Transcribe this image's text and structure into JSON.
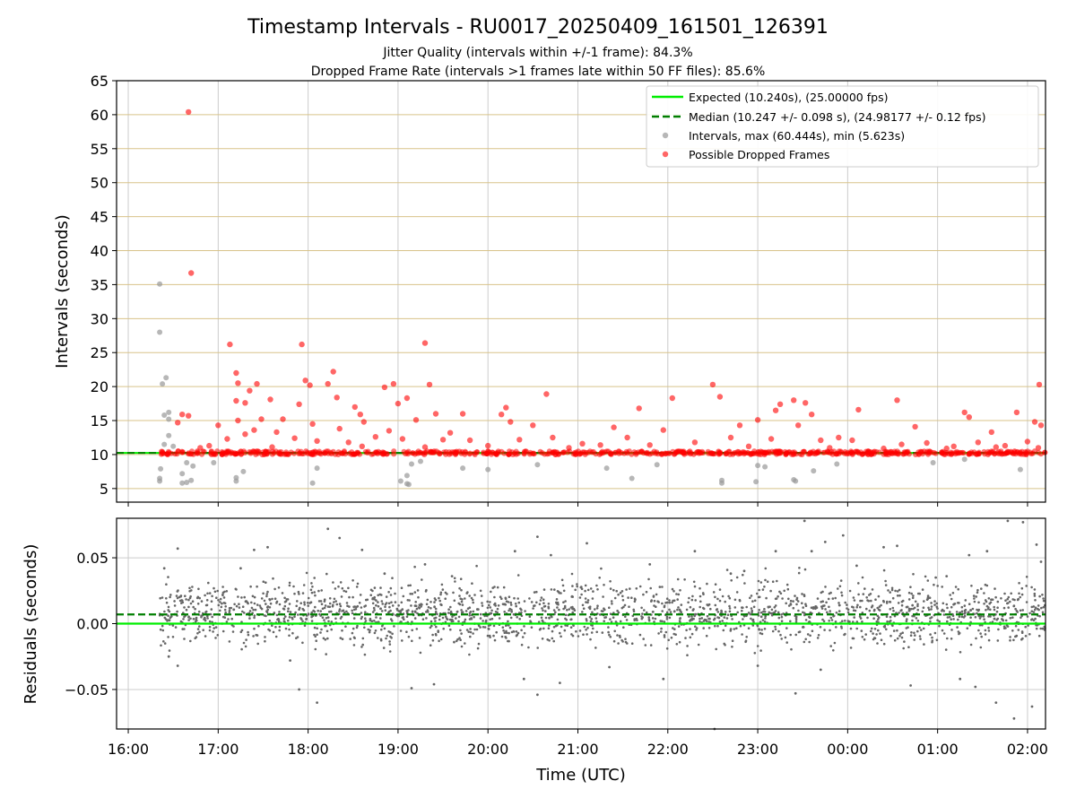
{
  "chart_data": {
    "type": "scatter",
    "title": "Timestamp Intervals - RU0017_20250409_161501_126391",
    "subtitle_lines": [
      "Jitter Quality (intervals within +/-1 frame): 84.3%",
      "Dropped Frame Rate (intervals >1 frames late within 50 FF files): 85.6%"
    ],
    "xlabel": "Time (UTC)",
    "x_ticks": [
      "16:00",
      "17:00",
      "18:00",
      "19:00",
      "20:00",
      "21:00",
      "22:00",
      "23:00",
      "00:00",
      "01:00",
      "02:00"
    ],
    "x_range_hours": [
      15.87,
      26.2
    ],
    "grid": true,
    "legend_placement": "top-right",
    "colors": {
      "expected": "#00ee00",
      "median": "#007f00",
      "intervals": "#999999",
      "dropped": "#ff0000",
      "residuals": "#666666",
      "top_grid": "#d8c38a",
      "grid": "#cccccc"
    },
    "top_panel": {
      "ylabel": "Intervals (seconds)",
      "ylim": [
        3,
        65
      ],
      "y_ticks": [
        5,
        10,
        15,
        20,
        25,
        30,
        35,
        40,
        45,
        50,
        55,
        60,
        65
      ],
      "expected_value": 10.24,
      "median_value": 10.247,
      "legend": [
        {
          "label": "Expected (10.240s), (25.00000 fps)",
          "style": "solid-line",
          "color": "#00ee00"
        },
        {
          "label": "Median (10.247 +/- 0.098 s), (24.98177 +/- 0.12 fps)",
          "style": "dashed-line",
          "color": "#007f00"
        },
        {
          "label": "Intervals, max (60.444s), min (5.623s)",
          "style": "marker",
          "color": "#999999"
        },
        {
          "label": "Possible Dropped Frames",
          "style": "marker",
          "color": "#ff0000"
        }
      ],
      "intervals_gray": [
        [
          16.35,
          35.1
        ],
        [
          16.35,
          28.0
        ],
        [
          16.38,
          20.4
        ],
        [
          16.42,
          21.3
        ],
        [
          16.4,
          15.8
        ],
        [
          16.45,
          16.2
        ],
        [
          16.45,
          15.2
        ],
        [
          16.4,
          11.5
        ],
        [
          16.45,
          12.8
        ],
        [
          16.5,
          11.2
        ],
        [
          16.35,
          6.1
        ],
        [
          16.35,
          6.5
        ],
        [
          16.36,
          7.9
        ],
        [
          16.6,
          5.8
        ],
        [
          16.65,
          5.9
        ],
        [
          16.7,
          6.2
        ],
        [
          16.6,
          7.2
        ],
        [
          16.65,
          8.8
        ],
        [
          16.72,
          8.3
        ],
        [
          16.95,
          8.8
        ],
        [
          17.2,
          6.1
        ],
        [
          17.2,
          6.6
        ],
        [
          17.28,
          7.5
        ],
        [
          18.05,
          5.8
        ],
        [
          18.1,
          8.0
        ],
        [
          19.03,
          6.1
        ],
        [
          19.1,
          5.7
        ],
        [
          19.12,
          5.6
        ],
        [
          19.1,
          6.9
        ],
        [
          19.15,
          8.6
        ],
        [
          19.25,
          9.0
        ],
        [
          19.72,
          8.0
        ],
        [
          20.0,
          7.8
        ],
        [
          20.55,
          8.5
        ],
        [
          21.32,
          8.0
        ],
        [
          21.6,
          6.5
        ],
        [
          21.88,
          8.5
        ],
        [
          22.6,
          5.8
        ],
        [
          22.6,
          6.2
        ],
        [
          22.98,
          6.0
        ],
        [
          23.0,
          8.4
        ],
        [
          23.08,
          8.2
        ],
        [
          23.4,
          6.3
        ],
        [
          23.42,
          6.1
        ],
        [
          23.62,
          7.6
        ],
        [
          23.88,
          8.6
        ],
        [
          24.95,
          8.8
        ],
        [
          25.3,
          9.3
        ],
        [
          25.92,
          7.8
        ]
      ],
      "dropped_frames": [
        [
          16.67,
          60.4
        ],
        [
          16.7,
          36.7
        ],
        [
          17.13,
          26.2
        ],
        [
          17.93,
          26.2
        ],
        [
          19.3,
          26.4
        ],
        [
          17.2,
          22.0
        ],
        [
          18.28,
          22.2
        ],
        [
          17.22,
          20.5
        ],
        [
          17.43,
          20.4
        ],
        [
          17.97,
          20.9
        ],
        [
          18.02,
          20.2
        ],
        [
          18.22,
          20.4
        ],
        [
          18.85,
          19.9
        ],
        [
          18.95,
          20.4
        ],
        [
          19.35,
          20.3
        ],
        [
          22.5,
          20.3
        ],
        [
          26.13,
          20.3
        ],
        [
          17.35,
          19.4
        ],
        [
          17.58,
          18.1
        ],
        [
          18.32,
          18.4
        ],
        [
          19.1,
          18.3
        ],
        [
          20.65,
          18.9
        ],
        [
          22.05,
          18.3
        ],
        [
          22.58,
          18.5
        ],
        [
          23.4,
          18.0
        ],
        [
          24.55,
          18.0
        ],
        [
          17.2,
          17.9
        ],
        [
          17.3,
          17.6
        ],
        [
          17.9,
          17.4
        ],
        [
          18.52,
          17.0
        ],
        [
          19.0,
          17.5
        ],
        [
          23.25,
          17.4
        ],
        [
          23.53,
          17.6
        ],
        [
          21.68,
          16.8
        ],
        [
          24.12,
          16.6
        ],
        [
          20.2,
          16.9
        ],
        [
          23.2,
          16.5
        ],
        [
          25.3,
          16.2
        ],
        [
          25.88,
          16.2
        ],
        [
          16.6,
          15.9
        ],
        [
          16.67,
          15.7
        ],
        [
          17.72,
          15.2
        ],
        [
          18.58,
          15.9
        ],
        [
          19.42,
          16.0
        ],
        [
          19.72,
          16.0
        ],
        [
          20.15,
          15.9
        ],
        [
          20.5,
          14.3
        ],
        [
          23.0,
          15.1
        ],
        [
          23.6,
          15.9
        ],
        [
          25.35,
          15.5
        ],
        [
          26.08,
          14.8
        ],
        [
          17.0,
          14.3
        ],
        [
          17.22,
          15.0
        ],
        [
          17.48,
          15.2
        ],
        [
          18.05,
          14.5
        ],
        [
          18.62,
          14.8
        ],
        [
          19.2,
          15.1
        ],
        [
          20.25,
          14.8
        ],
        [
          21.4,
          14.0
        ],
        [
          22.8,
          14.3
        ],
        [
          23.45,
          14.3
        ],
        [
          24.75,
          14.1
        ],
        [
          25.6,
          13.3
        ],
        [
          16.55,
          14.7
        ],
        [
          17.4,
          13.6
        ],
        [
          18.35,
          13.8
        ],
        [
          18.9,
          13.5
        ],
        [
          19.58,
          13.2
        ],
        [
          21.95,
          13.6
        ],
        [
          23.9,
          12.5
        ],
        [
          26.15,
          14.3
        ],
        [
          16.9,
          11.3
        ],
        [
          17.1,
          12.3
        ],
        [
          17.3,
          13.0
        ],
        [
          17.65,
          13.3
        ],
        [
          17.85,
          12.4
        ],
        [
          18.1,
          12.0
        ],
        [
          18.45,
          11.8
        ],
        [
          18.75,
          12.6
        ],
        [
          19.05,
          12.3
        ],
        [
          19.5,
          12.2
        ],
        [
          19.8,
          12.1
        ],
        [
          20.35,
          12.2
        ],
        [
          20.72,
          12.5
        ],
        [
          21.05,
          11.6
        ],
        [
          21.25,
          11.4
        ],
        [
          21.55,
          12.5
        ],
        [
          22.3,
          11.8
        ],
        [
          22.7,
          12.5
        ],
        [
          23.15,
          12.3
        ],
        [
          23.7,
          12.1
        ],
        [
          24.05,
          12.1
        ],
        [
          24.6,
          11.5
        ],
        [
          24.88,
          11.7
        ],
        [
          25.18,
          11.2
        ],
        [
          25.45,
          11.8
        ],
        [
          25.75,
          11.3
        ],
        [
          26.0,
          11.9
        ],
        [
          16.8,
          11.0
        ],
        [
          17.6,
          11.1
        ],
        [
          18.6,
          11.2
        ],
        [
          19.3,
          11.1
        ],
        [
          20.0,
          11.3
        ],
        [
          20.9,
          11.0
        ],
        [
          21.8,
          11.4
        ],
        [
          22.9,
          11.2
        ],
        [
          23.8,
          11.0
        ],
        [
          24.4,
          10.9
        ],
        [
          25.1,
          10.9
        ],
        [
          25.65,
          11.1
        ],
        [
          26.12,
          11.0
        ]
      ]
    },
    "bottom_panel": {
      "ylabel": "Residuals (seconds)",
      "ylim": [
        -0.08,
        0.08
      ],
      "y_ticks": [
        0.05,
        0.0,
        -0.05
      ],
      "y_tick_labels": [
        "0.05",
        "0.00",
        "−0.05"
      ],
      "expected_value": 0.0,
      "median_value": 0.007,
      "residual_outliers": [
        [
          16.4,
          0.042
        ],
        [
          16.55,
          0.057
        ],
        [
          16.45,
          -0.025
        ],
        [
          16.55,
          -0.032
        ],
        [
          17.25,
          0.042
        ],
        [
          17.4,
          0.056
        ],
        [
          17.55,
          0.058
        ],
        [
          17.8,
          -0.028
        ],
        [
          17.9,
          -0.05
        ],
        [
          18.1,
          -0.06
        ],
        [
          18.22,
          0.072
        ],
        [
          18.35,
          0.065
        ],
        [
          18.6,
          0.056
        ],
        [
          18.85,
          0.038
        ],
        [
          19.15,
          -0.049
        ],
        [
          19.3,
          0.045
        ],
        [
          19.4,
          -0.046
        ],
        [
          19.6,
          0.036
        ],
        [
          20.3,
          0.055
        ],
        [
          20.55,
          0.066
        ],
        [
          20.7,
          0.052
        ],
        [
          20.4,
          -0.042
        ],
        [
          20.55,
          -0.054
        ],
        [
          20.8,
          -0.045
        ],
        [
          21.1,
          0.061
        ],
        [
          21.35,
          -0.033
        ],
        [
          21.8,
          0.045
        ],
        [
          21.95,
          -0.042
        ],
        [
          22.3,
          0.055
        ],
        [
          22.52,
          -0.08
        ],
        [
          22.7,
          0.038
        ],
        [
          22.85,
          0.04
        ],
        [
          23.0,
          -0.032
        ],
        [
          23.2,
          0.055
        ],
        [
          23.42,
          -0.053
        ],
        [
          23.52,
          0.078
        ],
        [
          23.6,
          0.055
        ],
        [
          23.7,
          -0.035
        ],
        [
          23.75,
          0.062
        ],
        [
          23.95,
          0.067
        ],
        [
          24.1,
          0.044
        ],
        [
          24.4,
          0.058
        ],
        [
          24.55,
          0.059
        ],
        [
          24.7,
          -0.047
        ],
        [
          24.98,
          0.035
        ],
        [
          25.1,
          0.036
        ],
        [
          25.25,
          -0.042
        ],
        [
          25.35,
          0.052
        ],
        [
          25.42,
          -0.048
        ],
        [
          25.55,
          0.055
        ],
        [
          25.65,
          -0.06
        ],
        [
          25.78,
          0.078
        ],
        [
          25.85,
          -0.072
        ],
        [
          25.95,
          0.077
        ],
        [
          26.05,
          -0.063
        ],
        [
          26.1,
          0.06
        ],
        [
          26.15,
          0.047
        ]
      ]
    }
  }
}
